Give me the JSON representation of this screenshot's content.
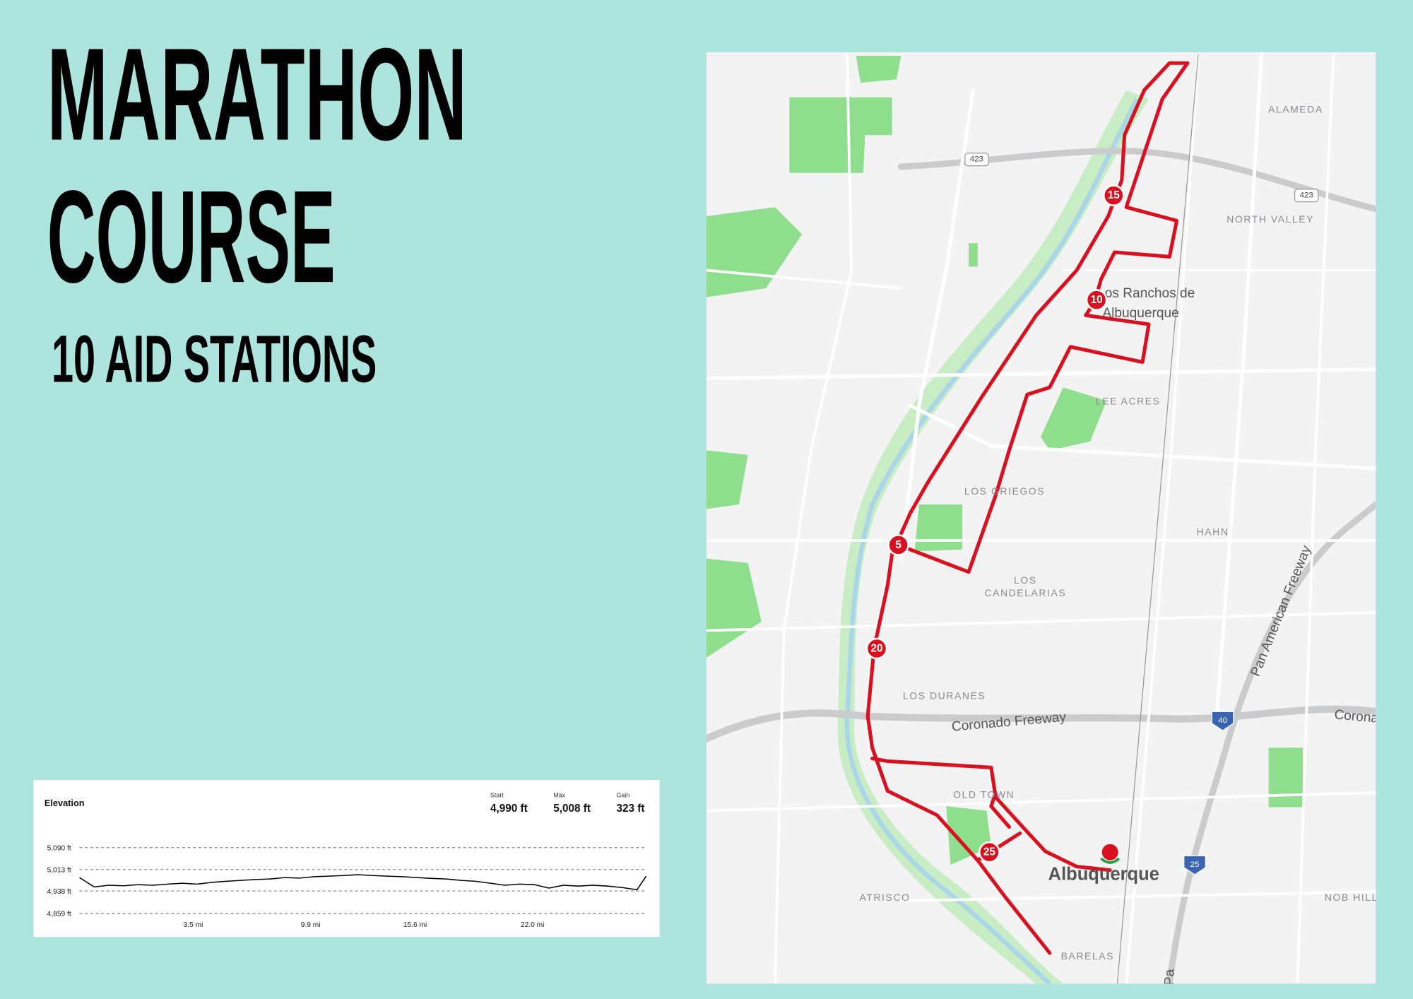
{
  "header": {
    "title": [
      "MARATHON",
      "COURSE"
    ],
    "subtitle": "10 AID STATIONS"
  },
  "map": {
    "labels": [
      "ALAMEDA",
      "NORTH VALLEY",
      "Los Ranchos de",
      "Albuquerque",
      "LEE ACRES",
      "LOS GRIEGOS",
      "HAHN",
      "LOS",
      "CANDELARIAS",
      "LOS DURANES",
      "Coronado Freeway",
      "Pan American Freeway",
      "Corona",
      "OLD TOWN",
      "Albuquerque",
      "ATRISCO",
      "NOB HILL",
      "BARELAS",
      "Pa"
    ],
    "shields": [
      "423",
      "423",
      "40",
      "25"
    ],
    "aid_stations": [
      "15",
      "10",
      "5",
      "20",
      "25"
    ]
  },
  "chart_data": {
    "type": "line",
    "title": "Elevation",
    "stats": [
      {
        "label": "Start",
        "value": "4,990 ft"
      },
      {
        "label": "Max",
        "value": "5,008 ft"
      },
      {
        "label": "Gain",
        "value": "323 ft"
      }
    ],
    "x": [
      -2.7,
      -1.9,
      -1.1,
      -0.3,
      0.5,
      1.3,
      2.1,
      2.9,
      3.7,
      4.5,
      5.3,
      6.1,
      6.9,
      7.7,
      8.5,
      9.3,
      10.1,
      10.9,
      11.7,
      12.5,
      13.3,
      14.1,
      14.9,
      15.7,
      16.5,
      17.3,
      18.1,
      18.9,
      19.7,
      20.5,
      21.3,
      22.1,
      22.9,
      23.7,
      24.5,
      25.3,
      26.1,
      26.9,
      27.7,
      28.2
    ],
    "values": [
      4985,
      4952,
      4958,
      4956,
      4960,
      4958,
      4962,
      4965,
      4962,
      4968,
      4972,
      4975,
      4978,
      4980,
      4985,
      4983,
      4988,
      4990,
      4992,
      4995,
      4992,
      4990,
      4988,
      4985,
      4982,
      4980,
      4975,
      4972,
      4965,
      4958,
      4962,
      4960,
      4948,
      4958,
      4955,
      4958,
      4955,
      4950,
      4942,
      4990
    ],
    "color": "#000000",
    "xlim": [
      -2.7,
      28.2
    ],
    "xticks": [
      {
        "value": 3.5,
        "label": "3.5 mi"
      },
      {
        "value": 9.9,
        "label": "9.9 mi"
      },
      {
        "value": 15.6,
        "label": "15.6 mi"
      },
      {
        "value": 22.0,
        "label": "22.0 mi"
      }
    ],
    "ylim": [
      4859,
      5090
    ],
    "yticks": [
      {
        "value": 4859,
        "label": "4,859 ft"
      },
      {
        "value": 4938,
        "label": "4,938 ft"
      },
      {
        "value": 5013,
        "label": "5,013 ft"
      },
      {
        "value": 5090,
        "label": "5,090 ft"
      }
    ],
    "grid": true
  }
}
